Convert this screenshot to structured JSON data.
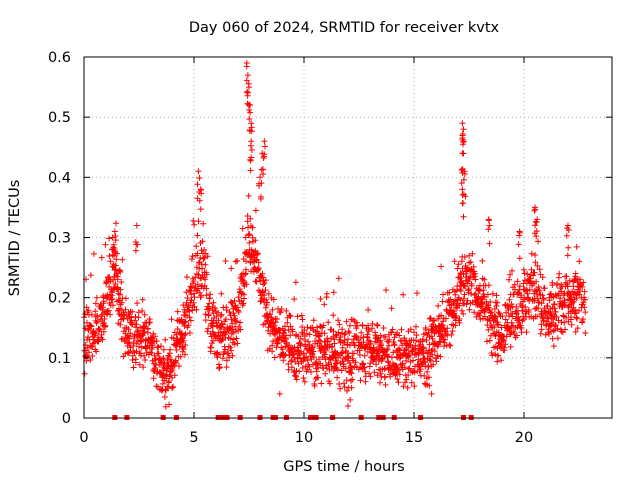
{
  "chart_data": {
    "type": "scatter",
    "title": "Day 060 of 2024, SRMTID for receiver kvtx",
    "xlabel": "GPS time / hours",
    "ylabel": "SRMTID / TECUs",
    "xlim": [
      0,
      24
    ],
    "ylim": [
      0,
      0.6
    ],
    "xticks": [
      0,
      5,
      10,
      15,
      20
    ],
    "xtick_labels": [
      "0",
      "5",
      "10",
      "15",
      "20"
    ],
    "yticks": [
      0,
      0.1,
      0.2,
      0.3,
      0.4,
      0.5,
      0.6
    ],
    "ytick_labels": [
      "0",
      "0.1",
      "0.2",
      "0.3",
      "0.4",
      "0.5",
      "0.6"
    ],
    "grid": true,
    "marker": "+",
    "color": "#ff0000",
    "series": [
      {
        "name": "SRMTID",
        "trend": [
          [
            0.0,
            0.13
          ],
          [
            0.5,
            0.14
          ],
          [
            1.0,
            0.18
          ],
          [
            1.4,
            0.25
          ],
          [
            1.8,
            0.15
          ],
          [
            2.2,
            0.14
          ],
          [
            2.6,
            0.13
          ],
          [
            3.0,
            0.12
          ],
          [
            3.4,
            0.08
          ],
          [
            3.8,
            0.07
          ],
          [
            4.2,
            0.12
          ],
          [
            4.6,
            0.15
          ],
          [
            5.0,
            0.22
          ],
          [
            5.4,
            0.25
          ],
          [
            5.8,
            0.15
          ],
          [
            6.4,
            0.13
          ],
          [
            7.0,
            0.16
          ],
          [
            7.5,
            0.3
          ],
          [
            8.0,
            0.22
          ],
          [
            8.5,
            0.15
          ],
          [
            9.0,
            0.13
          ],
          [
            9.5,
            0.12
          ],
          [
            10.0,
            0.11
          ],
          [
            11.0,
            0.11
          ],
          [
            12.0,
            0.1
          ],
          [
            12.5,
            0.12
          ],
          [
            13.0,
            0.11
          ],
          [
            14.0,
            0.1
          ],
          [
            15.0,
            0.1
          ],
          [
            15.5,
            0.1
          ],
          [
            16.0,
            0.13
          ],
          [
            16.5,
            0.16
          ],
          [
            17.0,
            0.2
          ],
          [
            17.4,
            0.24
          ],
          [
            18.0,
            0.2
          ],
          [
            18.5,
            0.16
          ],
          [
            19.0,
            0.13
          ],
          [
            19.5,
            0.17
          ],
          [
            20.0,
            0.19
          ],
          [
            20.5,
            0.22
          ],
          [
            21.0,
            0.16
          ],
          [
            21.5,
            0.18
          ],
          [
            22.0,
            0.2
          ],
          [
            22.5,
            0.2
          ],
          [
            22.8,
            0.18
          ]
        ],
        "peaks": [
          [
            1.3,
            0.3
          ],
          [
            1.4,
            0.31
          ],
          [
            2.4,
            0.32
          ],
          [
            5.2,
            0.41
          ],
          [
            5.3,
            0.38
          ],
          [
            7.4,
            0.59
          ],
          [
            7.45,
            0.57
          ],
          [
            7.5,
            0.55
          ],
          [
            7.55,
            0.52
          ],
          [
            7.6,
            0.49
          ],
          [
            7.6,
            0.46
          ],
          [
            8.2,
            0.46
          ],
          [
            8.1,
            0.44
          ],
          [
            8.0,
            0.4
          ],
          [
            17.2,
            0.49
          ],
          [
            17.25,
            0.48
          ],
          [
            17.2,
            0.44
          ],
          [
            17.3,
            0.41
          ],
          [
            17.2,
            0.38
          ],
          [
            18.4,
            0.33
          ],
          [
            20.5,
            0.35
          ],
          [
            20.6,
            0.33
          ],
          [
            19.8,
            0.31
          ],
          [
            22.0,
            0.32
          ]
        ],
        "lows": [
          [
            4.0,
            0.05
          ],
          [
            8.9,
            0.04
          ],
          [
            12.0,
            0.02
          ],
          [
            12.1,
            0.03
          ],
          [
            15.8,
            0.04
          ]
        ],
        "baseline_hours": [
          1.4,
          1.95,
          3.6,
          4.2,
          6.1,
          6.3,
          6.5,
          7.1,
          8.0,
          8.6,
          8.7,
          9.2,
          10.3,
          10.45,
          10.55,
          11.3,
          12.6,
          13.4,
          13.5,
          13.6,
          14.1,
          15.3,
          17.25,
          17.6
        ]
      }
    ]
  }
}
